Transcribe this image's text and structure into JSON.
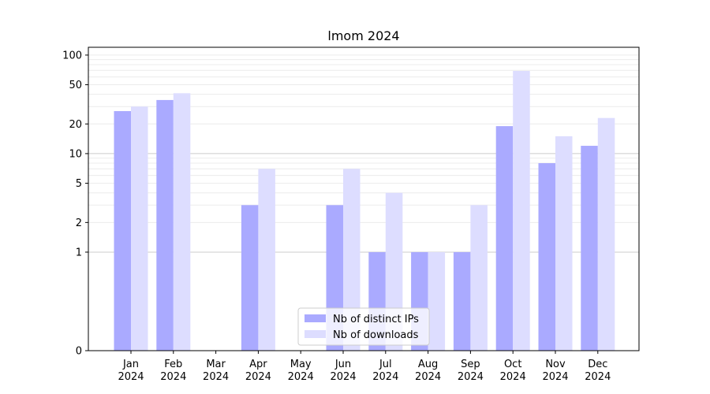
{
  "chart_data": {
    "type": "bar",
    "title": "lmom 2024",
    "xlabel": "",
    "ylabel": "",
    "y_scale": "symlog",
    "ylim": [
      0,
      120
    ],
    "y_ticks": [
      0,
      1,
      2,
      5,
      10,
      20,
      50,
      100
    ],
    "grid": true,
    "legend_placement": "lower-center",
    "categories": [
      [
        "Jan",
        "2024"
      ],
      [
        "Feb",
        "2024"
      ],
      [
        "Mar",
        "2024"
      ],
      [
        "Apr",
        "2024"
      ],
      [
        "May",
        "2024"
      ],
      [
        "Jun",
        "2024"
      ],
      [
        "Jul",
        "2024"
      ],
      [
        "Aug",
        "2024"
      ],
      [
        "Sep",
        "2024"
      ],
      [
        "Oct",
        "2024"
      ],
      [
        "Nov",
        "2024"
      ],
      [
        "Dec",
        "2024"
      ]
    ],
    "series": [
      {
        "name": "Nb of distinct IPs",
        "color": "#aaaaff",
        "values": [
          27,
          35,
          0,
          3,
          0,
          3,
          1,
          1,
          1,
          19,
          8,
          12
        ]
      },
      {
        "name": "Nb of downloads",
        "color": "#ddddff",
        "values": [
          30,
          41,
          0,
          7,
          0,
          7,
          4,
          1,
          3,
          69,
          15,
          23
        ]
      }
    ]
  }
}
